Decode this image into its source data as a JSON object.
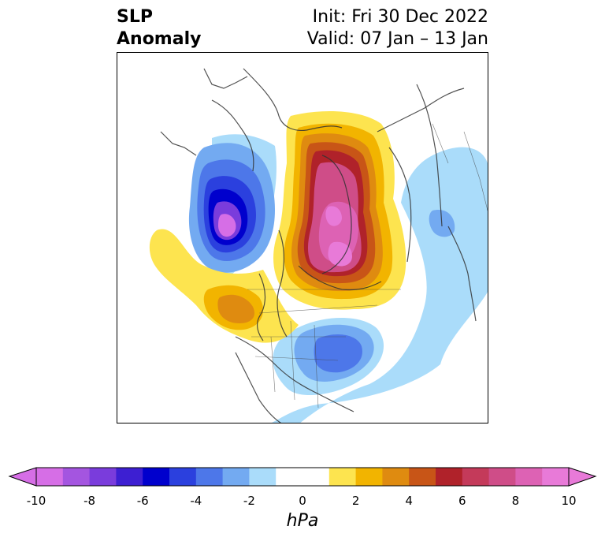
{
  "header": {
    "variable": "SLP",
    "kind": "Anomaly",
    "init": "Init: Fri 30 Dec 2022",
    "valid": "Valid: 07 Jan – 13 Jan"
  },
  "colorbar": {
    "unit": "hPa",
    "ticks": [
      "-10",
      "-8",
      "-6",
      "-4",
      "-2",
      "0",
      "2",
      "4",
      "6",
      "8",
      "10"
    ],
    "colors": [
      "#d66ee6",
      "#a455e0",
      "#7a3cdc",
      "#3d1fd2",
      "#0000cd",
      "#2b40de",
      "#4d77e9",
      "#73aaf1",
      "#aadcfa",
      "#ffffff",
      "#ffffff",
      "#fde44f",
      "#f2b400",
      "#df8b10",
      "#c85517",
      "#b0222a",
      "#c43a5a",
      "#cf4d88",
      "#dd62b4",
      "#e87ad8"
    ],
    "under_color": "#d66ee6",
    "over_color": "#e87ad8"
  }
}
